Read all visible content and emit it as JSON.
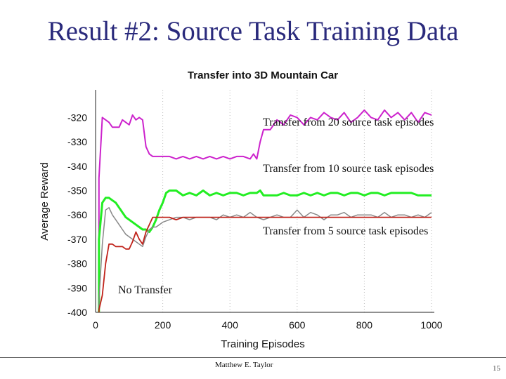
{
  "slide": {
    "title": "Result #2: Source Task Training Data",
    "author": "Matthew E. Taylor",
    "page_number": "15"
  },
  "colors": {
    "twenty": "#cc22cc",
    "ten": "#22ee22",
    "five": "#888888",
    "none": "#c0221a"
  },
  "chart_data": {
    "type": "line",
    "title": "Transfer into 3D Mountain Car",
    "xlabel": "Training Episodes",
    "ylabel": "Average Reward",
    "xlim": [
      0,
      1000
    ],
    "ylim": [
      -400,
      -315
    ],
    "xticks": [
      0,
      200,
      400,
      600,
      800,
      1000
    ],
    "yticks": [
      -320,
      -330,
      -340,
      -350,
      -360,
      -370,
      -380,
      -390,
      -400
    ],
    "grid": "dotted vertical",
    "annotations": [
      "Transfer from 20 source task episodes",
      "Transfer from 10 source task episodes",
      "Transfer from 5 source task episodes",
      "No Transfer"
    ],
    "series": [
      {
        "color": "#cc22cc",
        "x": [
          10,
          20,
          30,
          40,
          50,
          60,
          70,
          80,
          90,
          100,
          110,
          120,
          130,
          140,
          150,
          160,
          170,
          180,
          190,
          200,
          220,
          240,
          260,
          280,
          300,
          320,
          340,
          360,
          380,
          400,
          420,
          440,
          460,
          470,
          480,
          490,
          500,
          520,
          540,
          560,
          580,
          600,
          620,
          640,
          660,
          680,
          700,
          720,
          740,
          760,
          780,
          800,
          820,
          840,
          860,
          880,
          900,
          920,
          940,
          960,
          980,
          1000
        ],
        "y": [
          -345,
          -320,
          -321,
          -322,
          -324,
          -324,
          -324,
          -321,
          -322,
          -323,
          -319,
          -321,
          -320,
          -321,
          -332,
          -335,
          -336,
          -336,
          -336,
          -336,
          -336,
          -337,
          -336,
          -337,
          -336,
          -337,
          -336,
          -337,
          -336,
          -337,
          -336,
          -336,
          -337,
          -335,
          -337,
          -330,
          -325,
          -325,
          -321,
          -323,
          -319,
          -320,
          -323,
          -320,
          -321,
          -318,
          -320,
          -321,
          -318,
          -322,
          -320,
          -317,
          -320,
          -321,
          -317,
          -320,
          -318,
          -321,
          -318,
          -322,
          -318,
          -319
        ]
      },
      {
        "color": "#22ee22",
        "x": [
          10,
          20,
          30,
          40,
          50,
          60,
          70,
          80,
          90,
          100,
          110,
          120,
          130,
          140,
          150,
          160,
          170,
          180,
          190,
          200,
          210,
          220,
          240,
          260,
          280,
          300,
          320,
          340,
          360,
          380,
          400,
          420,
          440,
          460,
          480,
          490,
          500,
          520,
          540,
          560,
          580,
          600,
          620,
          640,
          660,
          680,
          700,
          720,
          740,
          760,
          780,
          800,
          820,
          840,
          860,
          880,
          900,
          920,
          940,
          960,
          980,
          1000
        ],
        "y": [
          -370,
          -355,
          -353,
          -353,
          -354,
          -355,
          -357,
          -359,
          -361,
          -362,
          -363,
          -364,
          -365,
          -366,
          -366,
          -367,
          -365,
          -362,
          -358,
          -355,
          -351,
          -350,
          -350,
          -352,
          -351,
          -352,
          -350,
          -352,
          -351,
          -352,
          -351,
          -351,
          -352,
          -351,
          -351,
          -350,
          -352,
          -352,
          -352,
          -351,
          -352,
          -352,
          -351,
          -352,
          -351,
          -352,
          -351,
          -351,
          -352,
          -351,
          -351,
          -352,
          -351,
          -351,
          -352,
          -351,
          -351,
          -351,
          -351,
          -352,
          -352,
          -352
        ]
      },
      {
        "color": "#888888",
        "x": [
          10,
          20,
          30,
          40,
          50,
          60,
          70,
          80,
          90,
          100,
          110,
          120,
          130,
          140,
          150,
          160,
          170,
          180,
          190,
          200,
          220,
          240,
          260,
          280,
          300,
          320,
          340,
          360,
          380,
          400,
          420,
          440,
          460,
          480,
          500,
          520,
          540,
          560,
          580,
          600,
          620,
          640,
          660,
          680,
          700,
          720,
          740,
          760,
          780,
          800,
          820,
          840,
          860,
          880,
          900,
          920,
          940,
          960,
          980,
          1000
        ],
        "y": [
          -395,
          -372,
          -358,
          -357,
          -360,
          -362,
          -364,
          -366,
          -368,
          -369,
          -370,
          -371,
          -372,
          -373,
          -369,
          -366,
          -365,
          -365,
          -364,
          -363,
          -362,
          -361,
          -361,
          -362,
          -361,
          -361,
          -361,
          -362,
          -360,
          -361,
          -360,
          -361,
          -359,
          -361,
          -362,
          -361,
          -360,
          -361,
          -361,
          -358,
          -361,
          -359,
          -360,
          -362,
          -360,
          -360,
          -359,
          -361,
          -360,
          -360,
          -360,
          -361,
          -359,
          -361,
          -360,
          -360,
          -361,
          -360,
          -361,
          -359
        ]
      },
      {
        "color": "#c0221a",
        "x": [
          10,
          20,
          30,
          40,
          50,
          60,
          70,
          80,
          90,
          100,
          110,
          120,
          130,
          140,
          150,
          160,
          170,
          180,
          190,
          200,
          220,
          240,
          260,
          280,
          300,
          320,
          340,
          360,
          380,
          400,
          420,
          440,
          460,
          480,
          500,
          520,
          540,
          560,
          580,
          600,
          620,
          640,
          660,
          680,
          700,
          720,
          740,
          760,
          780,
          800,
          820,
          840,
          860,
          880,
          900,
          920,
          940,
          960,
          980,
          1000
        ],
        "y": [
          -399,
          -393,
          -380,
          -372,
          -372,
          -373,
          -373,
          -373,
          -374,
          -374,
          -371,
          -367,
          -370,
          -372,
          -367,
          -364,
          -361,
          -361,
          -361,
          -361,
          -361,
          -362,
          -361,
          -361,
          -361,
          -361,
          -361,
          -361,
          -361,
          -361,
          -361,
          -361,
          -361,
          -361,
          -361,
          -361,
          -361,
          -361,
          -361,
          -361,
          -361,
          -361,
          -361,
          -361,
          -361,
          -361,
          -361,
          -361,
          -361,
          -361,
          -361,
          -361,
          -361,
          -361,
          -361,
          -361,
          -361,
          -361,
          -361,
          -361
        ]
      }
    ]
  }
}
